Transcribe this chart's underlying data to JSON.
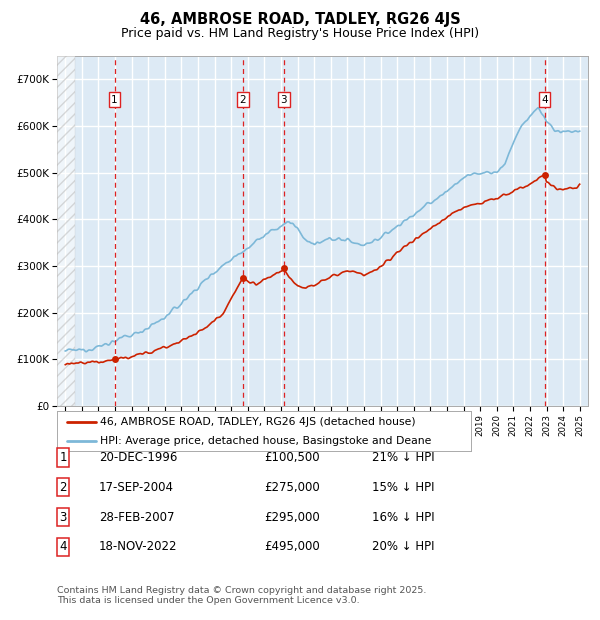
{
  "title": "46, AMBROSE ROAD, TADLEY, RG26 4JS",
  "subtitle": "Price paid vs. HM Land Registry's House Price Index (HPI)",
  "ylim": [
    0,
    750000
  ],
  "yticks": [
    0,
    100000,
    200000,
    300000,
    400000,
    500000,
    600000,
    700000
  ],
  "ytick_labels": [
    "£0",
    "£100K",
    "£200K",
    "£300K",
    "£400K",
    "£500K",
    "£600K",
    "£700K"
  ],
  "xlim_start": 1993.5,
  "xlim_end": 2025.5,
  "hpi_color": "#7db8d8",
  "price_color": "#cc2200",
  "plot_bg": "#ddeaf5",
  "hatch_region_end": 1994.58,
  "sale_dates": [
    1996.97,
    2004.71,
    2007.16,
    2022.88
  ],
  "sale_prices": [
    100500,
    275000,
    295000,
    495000
  ],
  "sale_labels": [
    "1",
    "2",
    "3",
    "4"
  ],
  "vline_color": "#dd2222",
  "legend_line1": "46, AMBROSE ROAD, TADLEY, RG26 4JS (detached house)",
  "legend_line2": "HPI: Average price, detached house, Basingstoke and Deane",
  "table_rows": [
    [
      "1",
      "20-DEC-1996",
      "£100,500",
      "21% ↓ HPI"
    ],
    [
      "2",
      "17-SEP-2004",
      "£275,000",
      "15% ↓ HPI"
    ],
    [
      "3",
      "28-FEB-2007",
      "£295,000",
      "16% ↓ HPI"
    ],
    [
      "4",
      "18-NOV-2022",
      "£495,000",
      "20% ↓ HPI"
    ]
  ],
  "footer": "Contains HM Land Registry data © Crown copyright and database right 2025.\nThis data is licensed under the Open Government Licence v3.0.",
  "grid_color": "#ffffff",
  "outer_bg": "#ffffff",
  "hpi_anchors_x": [
    1994.0,
    1995.0,
    1996.0,
    1997.0,
    1998.0,
    1999.0,
    2000.0,
    2001.0,
    2002.0,
    2003.0,
    2004.0,
    2005.0,
    2006.0,
    2007.0,
    2007.5,
    2008.0,
    2008.5,
    2009.0,
    2009.5,
    2010.0,
    2011.0,
    2012.0,
    2013.0,
    2014.0,
    2015.0,
    2016.0,
    2017.0,
    2018.0,
    2019.0,
    2020.0,
    2020.5,
    2021.0,
    2021.5,
    2022.0,
    2022.5,
    2023.0,
    2023.5,
    2024.0,
    2025.0
  ],
  "hpi_anchors_y": [
    118000,
    120000,
    127000,
    140000,
    152000,
    168000,
    190000,
    220000,
    255000,
    288000,
    315000,
    340000,
    365000,
    385000,
    395000,
    380000,
    355000,
    345000,
    350000,
    360000,
    355000,
    345000,
    360000,
    385000,
    410000,
    435000,
    460000,
    490000,
    500000,
    500000,
    520000,
    565000,
    600000,
    620000,
    640000,
    610000,
    590000,
    585000,
    590000
  ],
  "price_anchors_x": [
    1994.0,
    1995.5,
    1996.5,
    1996.97,
    1997.5,
    1998.5,
    1999.5,
    2000.5,
    2001.5,
    2002.5,
    2003.5,
    2004.71,
    2005.0,
    2005.5,
    2006.0,
    2006.5,
    2007.0,
    2007.16,
    2007.5,
    2008.0,
    2008.5,
    2009.0,
    2009.5,
    2010.0,
    2010.5,
    2011.0,
    2012.0,
    2013.0,
    2014.0,
    2015.0,
    2016.0,
    2017.0,
    2018.0,
    2019.0,
    2020.0,
    2021.0,
    2022.0,
    2022.88,
    2023.0,
    2023.5,
    2024.0,
    2025.0
  ],
  "price_anchors_y": [
    90000,
    93000,
    97000,
    100500,
    102000,
    110000,
    120000,
    133000,
    148000,
    168000,
    200000,
    275000,
    268000,
    260000,
    270000,
    278000,
    288000,
    295000,
    278000,
    258000,
    255000,
    260000,
    268000,
    278000,
    285000,
    290000,
    280000,
    295000,
    330000,
    355000,
    380000,
    405000,
    425000,
    435000,
    445000,
    460000,
    475000,
    495000,
    478000,
    468000,
    462000,
    470000
  ]
}
